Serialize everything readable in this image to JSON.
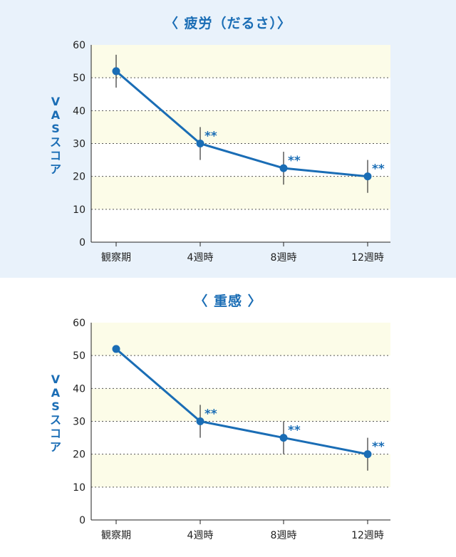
{
  "chart_data": [
    {
      "type": "line",
      "title": "〈 疲労（だるさ）〉",
      "ylabel": "VASスコア",
      "categories": [
        "観察期",
        "4週時",
        "8週時",
        "12週時"
      ],
      "series": [
        {
          "values": [
            52,
            30,
            22.5,
            20
          ],
          "error": [
            5,
            5,
            5,
            5
          ]
        }
      ],
      "annotations": [
        "",
        "**",
        "**",
        "**"
      ],
      "ylim": [
        0,
        60
      ],
      "yticks": [
        0,
        10,
        20,
        30,
        40,
        50,
        60
      ],
      "grid": "dotted-horizontal",
      "colors": {
        "line": "#1a6db5",
        "band": "#fcfce8",
        "grid": "#555555"
      }
    },
    {
      "type": "line",
      "title": "〈 重感 〉",
      "ylabel": "VASスコア",
      "categories": [
        "観察期",
        "4週時",
        "8週時",
        "12週時"
      ],
      "series": [
        {
          "values": [
            52,
            30,
            25,
            20
          ],
          "error": [
            0,
            5,
            5,
            5
          ]
        }
      ],
      "annotations": [
        "",
        "**",
        "**",
        "**"
      ],
      "ylim": [
        0,
        60
      ],
      "yticks": [
        0,
        10,
        20,
        30,
        40,
        50,
        60
      ],
      "grid": "dotted-horizontal",
      "colors": {
        "line": "#1a6db5",
        "band": "#fcfce8",
        "grid": "#555555"
      }
    }
  ]
}
